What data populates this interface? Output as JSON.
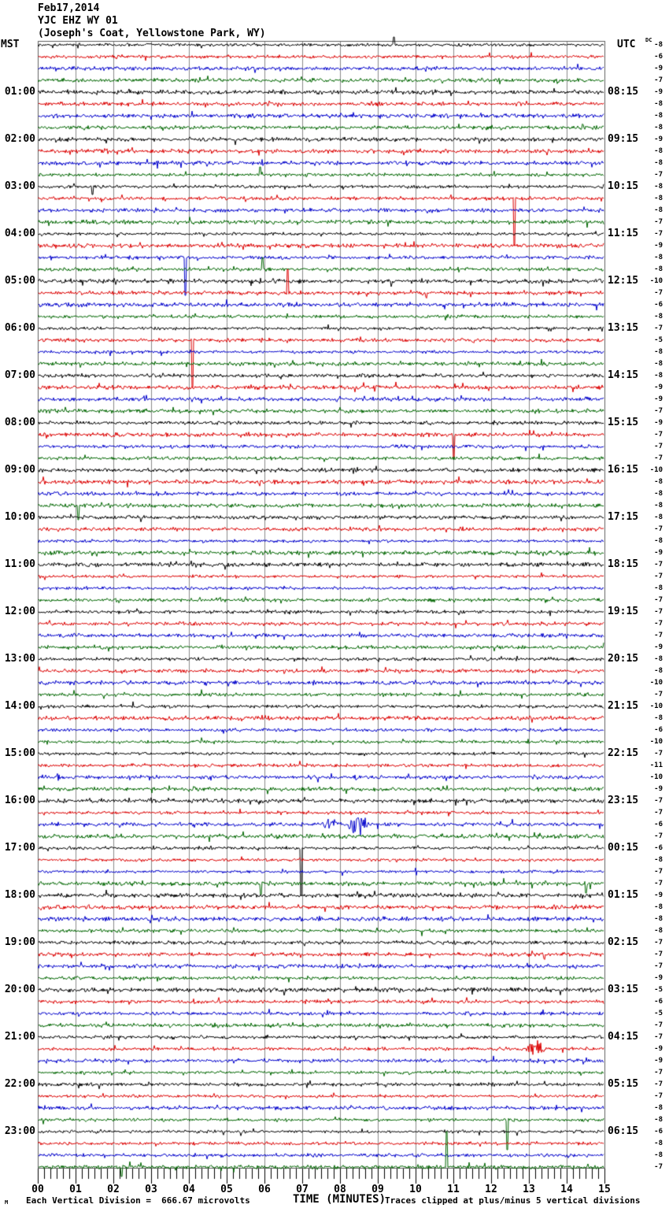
{
  "header": {
    "date": "Feb17,2014",
    "station": "YJC EHZ WY 01",
    "location": "(Joseph's Coat, Yellowstone Park, WY)"
  },
  "axes": {
    "left_header": "MST",
    "right_header": "UTC",
    "dc_header": "DC",
    "x_title": "TIME (MINUTES)",
    "x_ticks": [
      "00",
      "01",
      "02",
      "03",
      "04",
      "05",
      "06",
      "07",
      "08",
      "09",
      "10",
      "11",
      "12",
      "13",
      "14",
      "15"
    ]
  },
  "footer": {
    "corner_mark": "M",
    "scale_note": "Each Vertical Division =  666.67 microvolts",
    "clip_note": "Traces clipped at plus/minus 5 vertical divisions"
  },
  "chart_data": {
    "type": "line",
    "subtype": "helicorder",
    "title": "YJC EHZ WY 01 webicorder, Feb17,2014",
    "x_range_minutes": [
      0,
      15
    ],
    "minutes_per_line": 15,
    "n_rows": 96,
    "grid": "vertical gridline each minute",
    "color_cycle": [
      "black",
      "red",
      "blue",
      "green"
    ],
    "trace_colors": {
      "black": "#000000",
      "red": "#dd0000",
      "blue": "#0000cc",
      "green": "#006600",
      "grid": "#8a8a8a"
    },
    "rows": [
      {
        "dc": -8,
        "mst_label": "",
        "utc_label": ""
      },
      {
        "dc": -6,
        "mst_label": "",
        "utc_label": ""
      },
      {
        "dc": -9,
        "mst_label": "",
        "utc_label": ""
      },
      {
        "dc": -7,
        "mst_label": "",
        "utc_label": ""
      },
      {
        "dc": -9,
        "mst_label": "01:00",
        "utc_label": "08:15"
      },
      {
        "dc": -8,
        "mst_label": "",
        "utc_label": ""
      },
      {
        "dc": -8,
        "mst_label": "",
        "utc_label": ""
      },
      {
        "dc": -8,
        "mst_label": "",
        "utc_label": ""
      },
      {
        "dc": -9,
        "mst_label": "02:00",
        "utc_label": "09:15"
      },
      {
        "dc": -8,
        "mst_label": "",
        "utc_label": ""
      },
      {
        "dc": -8,
        "mst_label": "",
        "utc_label": ""
      },
      {
        "dc": -7,
        "mst_label": "",
        "utc_label": ""
      },
      {
        "dc": -8,
        "mst_label": "03:00",
        "utc_label": "10:15"
      },
      {
        "dc": -8,
        "mst_label": "",
        "utc_label": ""
      },
      {
        "dc": -8,
        "mst_label": "",
        "utc_label": ""
      },
      {
        "dc": -7,
        "mst_label": "",
        "utc_label": ""
      },
      {
        "dc": -7,
        "mst_label": "04:00",
        "utc_label": "11:15"
      },
      {
        "dc": -9,
        "mst_label": "",
        "utc_label": ""
      },
      {
        "dc": -8,
        "mst_label": "",
        "utc_label": ""
      },
      {
        "dc": -8,
        "mst_label": "",
        "utc_label": ""
      },
      {
        "dc": -10,
        "mst_label": "05:00",
        "utc_label": "12:15"
      },
      {
        "dc": -7,
        "mst_label": "",
        "utc_label": ""
      },
      {
        "dc": -6,
        "mst_label": "",
        "utc_label": ""
      },
      {
        "dc": -8,
        "mst_label": "",
        "utc_label": ""
      },
      {
        "dc": -7,
        "mst_label": "06:00",
        "utc_label": "13:15"
      },
      {
        "dc": -5,
        "mst_label": "",
        "utc_label": ""
      },
      {
        "dc": -8,
        "mst_label": "",
        "utc_label": ""
      },
      {
        "dc": -8,
        "mst_label": "",
        "utc_label": ""
      },
      {
        "dc": -8,
        "mst_label": "07:00",
        "utc_label": "14:15"
      },
      {
        "dc": -9,
        "mst_label": "",
        "utc_label": ""
      },
      {
        "dc": -9,
        "mst_label": "",
        "utc_label": ""
      },
      {
        "dc": -7,
        "mst_label": "",
        "utc_label": ""
      },
      {
        "dc": -9,
        "mst_label": "08:00",
        "utc_label": "15:15"
      },
      {
        "dc": -7,
        "mst_label": "",
        "utc_label": ""
      },
      {
        "dc": -7,
        "mst_label": "",
        "utc_label": ""
      },
      {
        "dc": -7,
        "mst_label": "",
        "utc_label": ""
      },
      {
        "dc": -10,
        "mst_label": "09:00",
        "utc_label": "16:15"
      },
      {
        "dc": -8,
        "mst_label": "",
        "utc_label": ""
      },
      {
        "dc": -8,
        "mst_label": "",
        "utc_label": ""
      },
      {
        "dc": -8,
        "mst_label": "",
        "utc_label": ""
      },
      {
        "dc": -8,
        "mst_label": "10:00",
        "utc_label": "17:15"
      },
      {
        "dc": -7,
        "mst_label": "",
        "utc_label": ""
      },
      {
        "dc": -8,
        "mst_label": "",
        "utc_label": ""
      },
      {
        "dc": -9,
        "mst_label": "",
        "utc_label": ""
      },
      {
        "dc": -7,
        "mst_label": "11:00",
        "utc_label": "18:15"
      },
      {
        "dc": -7,
        "mst_label": "",
        "utc_label": ""
      },
      {
        "dc": -8,
        "mst_label": "",
        "utc_label": ""
      },
      {
        "dc": -7,
        "mst_label": "",
        "utc_label": ""
      },
      {
        "dc": -7,
        "mst_label": "12:00",
        "utc_label": "19:15"
      },
      {
        "dc": -7,
        "mst_label": "",
        "utc_label": ""
      },
      {
        "dc": -7,
        "mst_label": "",
        "utc_label": ""
      },
      {
        "dc": -9,
        "mst_label": "",
        "utc_label": ""
      },
      {
        "dc": -8,
        "mst_label": "13:00",
        "utc_label": "20:15"
      },
      {
        "dc": -8,
        "mst_label": "",
        "utc_label": ""
      },
      {
        "dc": -10,
        "mst_label": "",
        "utc_label": ""
      },
      {
        "dc": -7,
        "mst_label": "",
        "utc_label": ""
      },
      {
        "dc": -10,
        "mst_label": "14:00",
        "utc_label": "21:15"
      },
      {
        "dc": -8,
        "mst_label": "",
        "utc_label": ""
      },
      {
        "dc": -6,
        "mst_label": "",
        "utc_label": ""
      },
      {
        "dc": -10,
        "mst_label": "",
        "utc_label": ""
      },
      {
        "dc": -7,
        "mst_label": "15:00",
        "utc_label": "22:15"
      },
      {
        "dc": -11,
        "mst_label": "",
        "utc_label": ""
      },
      {
        "dc": -10,
        "mst_label": "",
        "utc_label": ""
      },
      {
        "dc": -9,
        "mst_label": "",
        "utc_label": ""
      },
      {
        "dc": -7,
        "mst_label": "16:00",
        "utc_label": "23:15"
      },
      {
        "dc": -7,
        "mst_label": "",
        "utc_label": ""
      },
      {
        "dc": -6,
        "mst_label": "",
        "utc_label": ""
      },
      {
        "dc": -7,
        "mst_label": "",
        "utc_label": ""
      },
      {
        "dc": -6,
        "mst_label": "17:00",
        "utc_label": "00:15"
      },
      {
        "dc": -8,
        "mst_label": "",
        "utc_label": ""
      },
      {
        "dc": -7,
        "mst_label": "",
        "utc_label": ""
      },
      {
        "dc": -7,
        "mst_label": "",
        "utc_label": ""
      },
      {
        "dc": -9,
        "mst_label": "18:00",
        "utc_label": "01:15"
      },
      {
        "dc": -8,
        "mst_label": "",
        "utc_label": ""
      },
      {
        "dc": -8,
        "mst_label": "",
        "utc_label": ""
      },
      {
        "dc": -8,
        "mst_label": "",
        "utc_label": ""
      },
      {
        "dc": -7,
        "mst_label": "19:00",
        "utc_label": "02:15"
      },
      {
        "dc": -7,
        "mst_label": "",
        "utc_label": ""
      },
      {
        "dc": -7,
        "mst_label": "",
        "utc_label": ""
      },
      {
        "dc": -9,
        "mst_label": "",
        "utc_label": ""
      },
      {
        "dc": -5,
        "mst_label": "20:00",
        "utc_label": "03:15"
      },
      {
        "dc": -6,
        "mst_label": "",
        "utc_label": ""
      },
      {
        "dc": -5,
        "mst_label": "",
        "utc_label": ""
      },
      {
        "dc": -7,
        "mst_label": "",
        "utc_label": ""
      },
      {
        "dc": -7,
        "mst_label": "21:00",
        "utc_label": "04:15"
      },
      {
        "dc": -9,
        "mst_label": "",
        "utc_label": ""
      },
      {
        "dc": -9,
        "mst_label": "",
        "utc_label": ""
      },
      {
        "dc": -7,
        "mst_label": "",
        "utc_label": ""
      },
      {
        "dc": -7,
        "mst_label": "22:00",
        "utc_label": "05:15"
      },
      {
        "dc": -7,
        "mst_label": "",
        "utc_label": ""
      },
      {
        "dc": -8,
        "mst_label": "",
        "utc_label": ""
      },
      {
        "dc": -8,
        "mst_label": "",
        "utc_label": ""
      },
      {
        "dc": -6,
        "mst_label": "23:00",
        "utc_label": "06:15"
      },
      {
        "dc": -8,
        "mst_label": "",
        "utc_label": ""
      },
      {
        "dc": -8,
        "mst_label": "",
        "utc_label": ""
      },
      {
        "dc": -7,
        "mst_label": "",
        "utc_label": ""
      }
    ],
    "events": [
      {
        "row": 0,
        "minute": 9.42,
        "kind": "spike",
        "dy": -10
      },
      {
        "row": 11,
        "minute": 5.88,
        "kind": "spike",
        "dy": -10
      },
      {
        "row": 12,
        "minute": 1.44,
        "kind": "spike",
        "dy": 10
      },
      {
        "row": 13,
        "minute": 12.62,
        "kind": "spike",
        "dy": 60
      },
      {
        "row": 18,
        "minute": 3.9,
        "kind": "spike",
        "dy": 48
      },
      {
        "row": 19,
        "minute": 5.94,
        "kind": "spike",
        "dy": -15
      },
      {
        "row": 21,
        "minute": 6.62,
        "kind": "spike",
        "dy": -30
      },
      {
        "row": 25,
        "minute": 4.1,
        "kind": "spike",
        "dy": 60
      },
      {
        "row": 33,
        "minute": 11.02,
        "kind": "spike",
        "dy": 30
      },
      {
        "row": 39,
        "minute": 1.08,
        "kind": "spike",
        "dy": 18
      },
      {
        "row": 66,
        "minute": 7.75,
        "kind": "burst",
        "amp": 9,
        "width_min": 0.35
      },
      {
        "row": 66,
        "minute": 8.48,
        "kind": "burst",
        "amp": 15,
        "width_min": 0.5
      },
      {
        "row": 68,
        "minute": 6.96,
        "kind": "spike",
        "dy": 60
      },
      {
        "row": 71,
        "minute": 5.9,
        "kind": "spike",
        "dy": 14
      },
      {
        "row": 71,
        "minute": 14.52,
        "kind": "spike",
        "dy": 12
      },
      {
        "row": 85,
        "minute": 13.19,
        "kind": "burst",
        "amp": 11,
        "width_min": 0.45
      },
      {
        "row": 91,
        "minute": 12.42,
        "kind": "spike",
        "dy": 38
      },
      {
        "row": 95,
        "minute": 10.83,
        "kind": "spike",
        "dy": -45
      },
      {
        "row": 95,
        "minute": 2.21,
        "kind": "spike",
        "dy": 12
      }
    ]
  }
}
